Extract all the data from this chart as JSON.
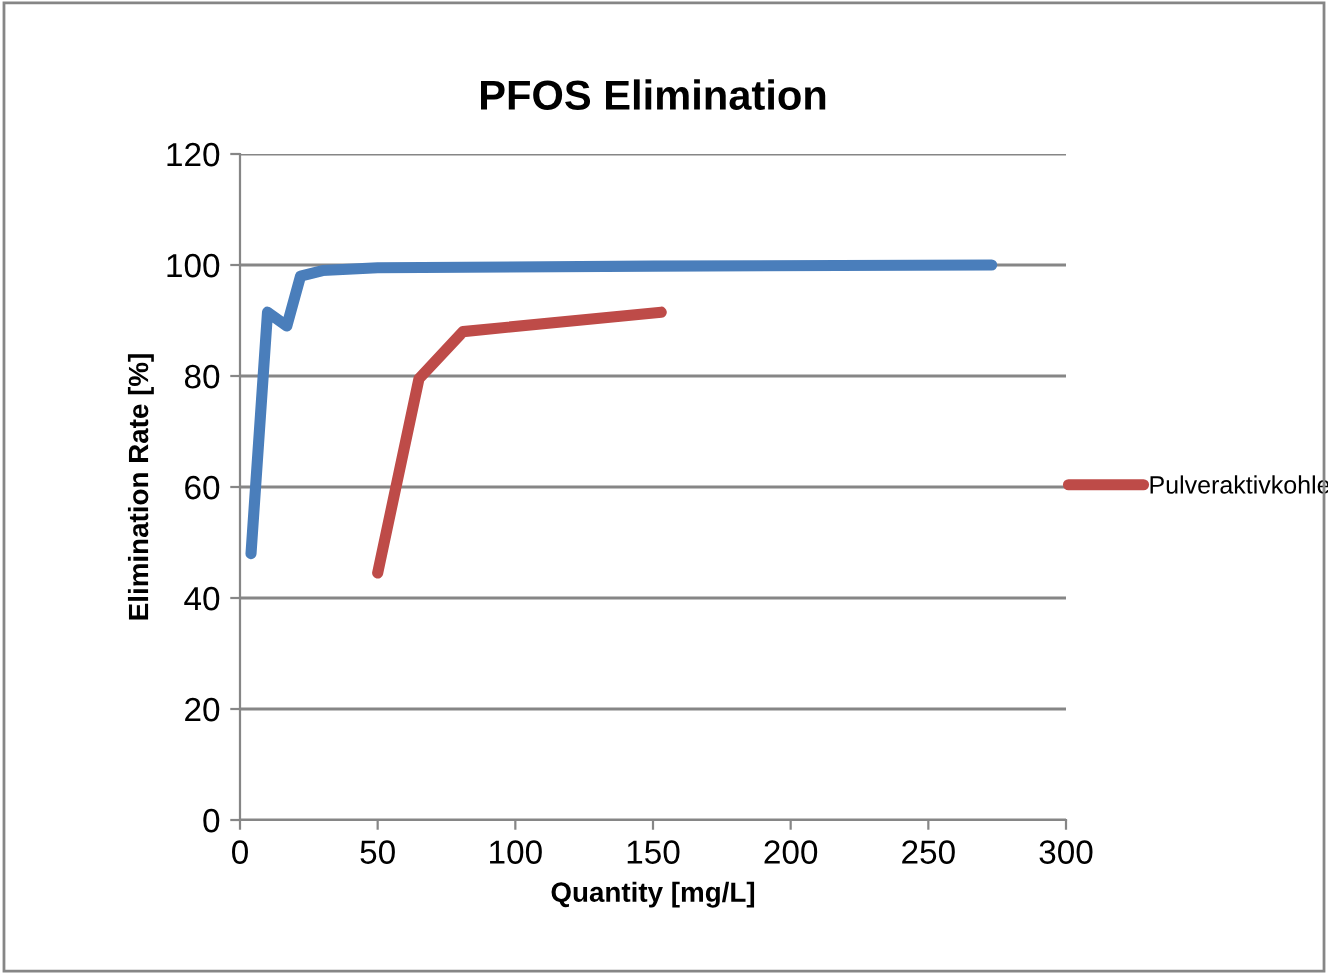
{
  "chart_data": {
    "type": "line",
    "title": "PFOS Elimination",
    "xlabel": "Quantity [mg/L]",
    "ylabel": "Elimination Rate [%]",
    "xlim": [
      0,
      300
    ],
    "xticks": [
      0,
      50,
      100,
      150,
      200,
      250,
      300
    ],
    "ylim": [
      0,
      120
    ],
    "yticks": [
      0,
      20,
      40,
      60,
      80,
      100,
      120
    ],
    "grid": "y",
    "legend": "right",
    "marker": "none",
    "line_style": "solid",
    "series": [
      {
        "color": "#4a7ebb",
        "x": [
          4,
          10,
          17,
          22,
          30,
          50,
          150,
          273
        ],
        "values": [
          48,
          91.5,
          89,
          98,
          99,
          99.5,
          99.8,
          100
        ]
      },
      {
        "name": "Pulveraktivkohle",
        "color": "#be4b48",
        "x": [
          50,
          65,
          81,
          153
        ],
        "values": [
          44.5,
          79.5,
          88,
          91.5
        ]
      }
    ]
  }
}
